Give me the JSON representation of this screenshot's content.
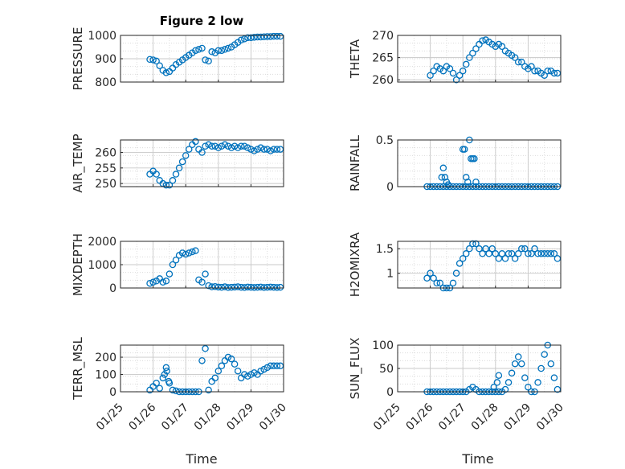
{
  "figure": {
    "title": "Figure 2 low"
  },
  "chart_data": [
    {
      "type": "scatter",
      "name": "pressure",
      "title": "Figure 2 low",
      "ylabel": "PRESSURE",
      "xlabel": "",
      "xlim": [
        0,
        5
      ],
      "ylim": [
        800,
        1000
      ],
      "yticks": [
        800,
        900,
        1000
      ],
      "yticklabels": [
        "800",
        "900",
        "1000"
      ],
      "xticklabels": [],
      "grid": true,
      "x": [
        0.9,
        1.0,
        1.1,
        1.2,
        1.3,
        1.4,
        1.5,
        1.6,
        1.7,
        1.8,
        1.9,
        2.0,
        2.1,
        2.2,
        2.3,
        2.4,
        2.5,
        2.6,
        2.7,
        2.8,
        2.9,
        3.0,
        3.1,
        3.2,
        3.3,
        3.4,
        3.5,
        3.6,
        3.7,
        3.8,
        3.9,
        4.0,
        4.1,
        4.2,
        4.3,
        4.4,
        4.5,
        4.6,
        4.7,
        4.8,
        4.9
      ],
      "y": [
        897,
        895,
        890,
        870,
        850,
        840,
        845,
        860,
        875,
        885,
        895,
        905,
        915,
        925,
        935,
        940,
        945,
        895,
        890,
        930,
        925,
        935,
        935,
        940,
        945,
        950,
        960,
        970,
        980,
        985,
        990,
        990,
        992,
        993,
        993,
        994,
        995,
        995,
        996,
        996,
        996
      ]
    },
    {
      "type": "scatter",
      "name": "theta",
      "title": "",
      "ylabel": "THETA",
      "xlabel": "",
      "xlim": [
        0,
        5
      ],
      "ylim": [
        259.5,
        270
      ],
      "yticks": [
        260,
        265,
        270
      ],
      "yticklabels": [
        "260",
        "265",
        "270"
      ],
      "xticklabels": [],
      "grid": true,
      "x": [
        1.0,
        1.1,
        1.2,
        1.3,
        1.4,
        1.5,
        1.6,
        1.7,
        1.8,
        1.9,
        2.0,
        2.1,
        2.2,
        2.3,
        2.4,
        2.5,
        2.6,
        2.7,
        2.8,
        2.9,
        3.0,
        3.1,
        3.2,
        3.3,
        3.4,
        3.5,
        3.6,
        3.7,
        3.8,
        3.9,
        4.0,
        4.1,
        4.2,
        4.3,
        4.4,
        4.5,
        4.6,
        4.7,
        4.8,
        4.9
      ],
      "y": [
        261,
        262,
        263,
        262.5,
        262,
        263,
        262.5,
        261.5,
        260,
        261,
        262,
        263.5,
        265,
        266,
        267,
        268,
        268.8,
        269,
        268.5,
        268,
        267.5,
        268,
        267.5,
        266.5,
        266,
        265.5,
        265,
        264,
        264,
        263,
        262.5,
        263,
        262,
        262,
        261.5,
        261,
        262,
        262,
        261.5,
        261.5
      ]
    },
    {
      "type": "scatter",
      "name": "air_temp",
      "title": "",
      "ylabel": "AIR_TEMP",
      "xlabel": "",
      "xlim": [
        0,
        5
      ],
      "ylim": [
        249,
        264
      ],
      "yticks": [
        250,
        255,
        260
      ],
      "yticklabels": [
        "250",
        "255",
        "260"
      ],
      "xticklabels": [],
      "grid": true,
      "x": [
        0.9,
        1.0,
        1.1,
        1.2,
        1.3,
        1.4,
        1.5,
        1.6,
        1.7,
        1.8,
        1.9,
        2.0,
        2.1,
        2.2,
        2.3,
        2.4,
        2.5,
        2.6,
        2.7,
        2.8,
        2.9,
        3.0,
        3.1,
        3.2,
        3.3,
        3.4,
        3.5,
        3.6,
        3.7,
        3.8,
        3.9,
        4.0,
        4.1,
        4.2,
        4.3,
        4.4,
        4.5,
        4.6,
        4.7,
        4.8,
        4.9
      ],
      "y": [
        253,
        254,
        253,
        251,
        250,
        249.5,
        249.5,
        251,
        253,
        255,
        257,
        259,
        261,
        262.5,
        263.5,
        261,
        260,
        262,
        262.5,
        262,
        262,
        261.5,
        262,
        262.5,
        262,
        261.5,
        262,
        261.5,
        262,
        262,
        261.5,
        261,
        260.5,
        261,
        261.5,
        261,
        261,
        260.5,
        261,
        261,
        261
      ]
    },
    {
      "type": "scatter",
      "name": "rainfall",
      "title": "",
      "ylabel": "RAINFALL",
      "xlabel": "",
      "xlim": [
        0,
        5
      ],
      "ylim": [
        0,
        0.5
      ],
      "yticks": [
        0,
        0.5
      ],
      "yticklabels": [
        "0",
        "0.5"
      ],
      "xticklabels": [],
      "grid": true,
      "x": [
        0.9,
        1.0,
        1.1,
        1.2,
        1.3,
        1.4,
        1.5,
        1.6,
        1.7,
        1.8,
        1.9,
        2.0,
        2.1,
        2.2,
        2.3,
        2.4,
        2.5,
        2.6,
        2.7,
        2.8,
        2.9,
        3.0,
        3.1,
        3.2,
        3.3,
        3.4,
        3.5,
        3.6,
        3.7,
        3.8,
        3.9,
        4.0,
        4.1,
        4.2,
        4.3,
        4.4,
        4.5,
        4.6,
        4.7,
        4.8,
        4.9,
        1.35,
        1.4,
        1.45,
        1.5,
        1.55,
        2.0,
        2.05,
        2.1,
        2.15,
        2.2,
        2.25,
        2.3,
        2.35,
        2.4
      ],
      "y": [
        0,
        0,
        0,
        0,
        0,
        0,
        0,
        0,
        0,
        0,
        0,
        0,
        0,
        0,
        0,
        0,
        0,
        0,
        0,
        0,
        0,
        0,
        0,
        0,
        0,
        0,
        0,
        0,
        0,
        0,
        0,
        0,
        0,
        0,
        0,
        0,
        0,
        0,
        0,
        0,
        0,
        0.1,
        0.2,
        0.1,
        0.05,
        0.02,
        0.4,
        0.4,
        0.1,
        0.05,
        0.5,
        0.3,
        0.3,
        0.3,
        0.05
      ]
    },
    {
      "type": "scatter",
      "name": "mixdepth",
      "title": "",
      "ylabel": "MIXDEPTH",
      "xlabel": "",
      "xlim": [
        0,
        5
      ],
      "ylim": [
        0,
        2000
      ],
      "yticks": [
        0,
        1000,
        2000
      ],
      "yticklabels": [
        "0",
        "1000",
        "2000"
      ],
      "xticklabels": [],
      "grid": true,
      "x": [
        0.9,
        1.0,
        1.1,
        1.2,
        1.3,
        1.4,
        1.5,
        1.6,
        1.7,
        1.8,
        1.9,
        2.0,
        2.1,
        2.2,
        2.3,
        2.4,
        2.5,
        2.6,
        2.7,
        2.8,
        2.9,
        3.0,
        3.1,
        3.2,
        3.3,
        3.4,
        3.5,
        3.6,
        3.7,
        3.8,
        3.9,
        4.0,
        4.1,
        4.2,
        4.3,
        4.4,
        4.5,
        4.6,
        4.7,
        4.8,
        4.9
      ],
      "y": [
        200,
        250,
        300,
        400,
        250,
        300,
        600,
        1000,
        1200,
        1400,
        1500,
        1450,
        1500,
        1550,
        1600,
        350,
        250,
        600,
        100,
        50,
        60,
        40,
        30,
        50,
        20,
        30,
        40,
        50,
        30,
        20,
        40,
        30,
        20,
        30,
        40,
        20,
        30,
        40,
        30,
        20,
        30
      ]
    },
    {
      "type": "scatter",
      "name": "h2omixra",
      "title": "",
      "ylabel": "H2OMIXRA",
      "xlabel": "",
      "xlim": [
        0,
        5
      ],
      "ylim": [
        0.7,
        1.65
      ],
      "yticks": [
        1,
        1.5
      ],
      "yticklabels": [
        "1",
        "1.5"
      ],
      "xticklabels": [],
      "grid": true,
      "x": [
        0.9,
        1.0,
        1.1,
        1.2,
        1.3,
        1.4,
        1.5,
        1.6,
        1.7,
        1.8,
        1.9,
        2.0,
        2.1,
        2.2,
        2.3,
        2.4,
        2.5,
        2.6,
        2.7,
        2.8,
        2.9,
        3.0,
        3.1,
        3.2,
        3.3,
        3.4,
        3.5,
        3.6,
        3.7,
        3.8,
        3.9,
        4.0,
        4.1,
        4.2,
        4.3,
        4.4,
        4.5,
        4.6,
        4.7,
        4.8,
        4.9
      ],
      "y": [
        0.9,
        1.0,
        0.9,
        0.8,
        0.8,
        0.7,
        0.7,
        0.7,
        0.8,
        1.0,
        1.2,
        1.3,
        1.4,
        1.5,
        1.6,
        1.6,
        1.5,
        1.4,
        1.5,
        1.4,
        1.5,
        1.4,
        1.3,
        1.4,
        1.3,
        1.4,
        1.4,
        1.3,
        1.4,
        1.5,
        1.5,
        1.4,
        1.4,
        1.5,
        1.4,
        1.4,
        1.4,
        1.4,
        1.4,
        1.4,
        1.3
      ]
    },
    {
      "type": "scatter",
      "name": "terr_msl",
      "title": "",
      "ylabel": "TERR_MSL",
      "xlabel": "",
      "xlim": [
        0,
        5
      ],
      "ylim": [
        0,
        270
      ],
      "yticks": [
        0,
        100,
        200
      ],
      "yticklabels": [
        "0",
        "100",
        "200"
      ],
      "xticklabels": [],
      "grid": true,
      "x": [
        0.9,
        1.0,
        1.1,
        1.2,
        1.3,
        1.4,
        1.5,
        1.6,
        1.7,
        1.8,
        1.9,
        2.0,
        2.1,
        2.2,
        2.3,
        2.4,
        2.5,
        2.6,
        2.7,
        2.8,
        2.9,
        3.0,
        3.1,
        3.2,
        3.3,
        3.4,
        3.5,
        3.6,
        3.7,
        3.8,
        3.9,
        4.0,
        4.1,
        4.2,
        4.3,
        4.4,
        4.5,
        4.6,
        4.7,
        4.8,
        4.9,
        1.35,
        1.42,
        1.48
      ],
      "y": [
        10,
        30,
        50,
        20,
        80,
        140,
        50,
        10,
        5,
        0,
        0,
        0,
        0,
        0,
        0,
        0,
        180,
        250,
        10,
        60,
        80,
        120,
        150,
        180,
        200,
        190,
        160,
        120,
        80,
        100,
        90,
        100,
        110,
        100,
        120,
        130,
        140,
        150,
        150,
        150,
        150,
        100,
        120,
        60
      ]
    },
    {
      "type": "scatter",
      "name": "sun_flux",
      "title": "",
      "ylabel": "SUN_FLUX",
      "xlabel": "Time",
      "xlim": [
        0,
        5
      ],
      "ylim": [
        0,
        100
      ],
      "yticks": [
        0,
        50,
        100
      ],
      "yticklabels": [
        "0",
        "50",
        "100"
      ],
      "xticklabels": [
        "01/25",
        "01/26",
        "01/27",
        "01/28",
        "01/29",
        "01/30"
      ],
      "grid": true,
      "x": [
        0.9,
        1.0,
        1.1,
        1.2,
        1.3,
        1.4,
        1.5,
        1.6,
        1.7,
        1.8,
        1.9,
        2.0,
        2.1,
        2.2,
        2.3,
        2.4,
        2.5,
        2.6,
        2.7,
        2.8,
        2.9,
        3.0,
        3.1,
        3.2,
        3.3,
        3.4,
        3.5,
        3.6,
        3.7,
        3.8,
        3.9,
        4.0,
        4.1,
        4.2,
        4.3,
        4.4,
        4.5,
        4.6,
        4.7,
        4.8,
        4.9,
        2.95,
        3.05,
        3.1
      ],
      "y": [
        0,
        0,
        0,
        0,
        0,
        0,
        0,
        0,
        0,
        0,
        0,
        0,
        0,
        5,
        10,
        5,
        0,
        0,
        0,
        0,
        0,
        0,
        0,
        0,
        5,
        20,
        40,
        60,
        75,
        60,
        30,
        10,
        0,
        0,
        20,
        50,
        80,
        100,
        60,
        30,
        5,
        10,
        20,
        35
      ]
    }
  ],
  "bottom_xlabels": [
    "Time",
    "Time"
  ]
}
